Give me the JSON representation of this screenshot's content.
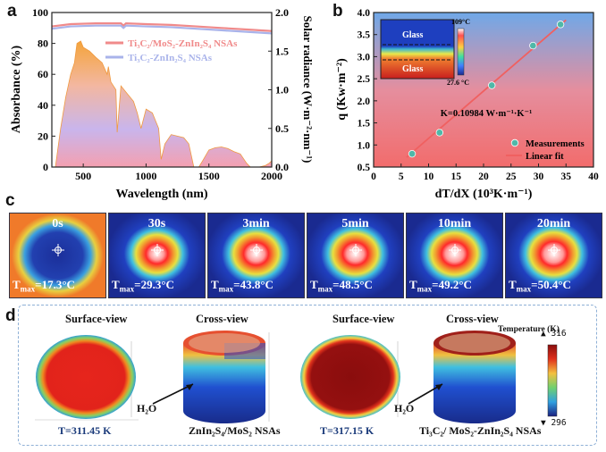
{
  "panels": {
    "a": {
      "letter": "a"
    },
    "b": {
      "letter": "b"
    },
    "c": {
      "letter": "c"
    },
    "d": {
      "letter": "d"
    }
  },
  "chart_data": [
    {
      "id": "a",
      "type": "area",
      "xlabel": "Wavelength (nm)",
      "ylabel": "Absorbance (%)",
      "y2label": "Solar radiance (W·m⁻²·nm⁻¹)",
      "xlim": [
        250,
        2000
      ],
      "ylim": [
        0,
        100
      ],
      "y2lim": [
        0,
        2.0
      ],
      "xticks": [
        500,
        1000,
        1500,
        2000
      ],
      "yticks": [
        0,
        20,
        40,
        60,
        80,
        100
      ],
      "y2ticks": [
        "0.0",
        "0.5",
        "1.0",
        "1.5",
        "2.0"
      ],
      "legend": [
        "Ti₃C₂/MoS₂-ZnIn₂S₄ NSAs",
        "Ti₃C₂-ZnIn₂S₄ NSAs"
      ],
      "series": [
        {
          "name": "Ti₃C₂/MoS₂-ZnIn₂S₄ NSAs",
          "color": "#f08a8a",
          "x": [
            250,
            400,
            600,
            800,
            820,
            840,
            1000,
            1200,
            1400,
            1600,
            1800,
            2000
          ],
          "y": [
            91,
            92.5,
            93,
            93,
            91.5,
            93,
            92.5,
            92,
            91,
            90,
            89,
            88
          ]
        },
        {
          "name": "Ti₃C₂-ZnIn₂S₄ NSAs",
          "color": "#a9b3ea",
          "x": [
            250,
            400,
            600,
            800,
            820,
            840,
            1000,
            1200,
            1400,
            1600,
            1800,
            2000
          ],
          "y": [
            89.5,
            91,
            91.5,
            91.5,
            90,
            91.5,
            91,
            90.5,
            89.5,
            88.5,
            87.5,
            86.5
          ]
        },
        {
          "name": "Solar radiance",
          "axis": "right",
          "x": [
            280,
            320,
            360,
            400,
            430,
            450,
            480,
            500,
            550,
            600,
            650,
            690,
            700,
            720,
            760,
            770,
            800,
            850,
            900,
            930,
            960,
            1000,
            1050,
            1100,
            1120,
            1150,
            1200,
            1250,
            1300,
            1340,
            1380,
            1420,
            1450,
            1500,
            1550,
            1600,
            1650,
            1700,
            1750,
            1800,
            1830,
            1900,
            1950,
            1980,
            2000
          ],
          "y": [
            0.02,
            0.5,
            0.9,
            1.2,
            1.35,
            1.6,
            1.63,
            1.55,
            1.5,
            1.42,
            1.35,
            1.2,
            1.3,
            1.1,
            1.0,
            0.45,
            1.05,
            0.95,
            0.85,
            0.7,
            0.5,
            0.75,
            0.7,
            0.5,
            0.1,
            0.3,
            0.42,
            0.4,
            0.38,
            0.3,
            0.0,
            0.0,
            0.08,
            0.22,
            0.25,
            0.26,
            0.24,
            0.2,
            0.17,
            0.05,
            0.0,
            0.0,
            0.02,
            0.05,
            0.08
          ]
        }
      ]
    },
    {
      "id": "b",
      "type": "scatter",
      "xlabel": "dT/dX (10³K·m⁻¹)",
      "ylabel": "q (Kw·m⁻²)",
      "xlim": [
        0,
        40
      ],
      "ylim": [
        0.5,
        4.0
      ],
      "xticks": [
        0,
        5,
        10,
        15,
        20,
        25,
        30,
        35,
        40
      ],
      "yticks": [
        "0.5",
        "1.0",
        "1.5",
        "2.0",
        "2.5",
        "3.0",
        "3.5",
        "4.0"
      ],
      "annotation": "K=0.10984 W·m⁻¹·K⁻¹",
      "legend": [
        "Measurements",
        "Linear fit"
      ],
      "inset": {
        "top_label": "Glass",
        "bottom_label": "Glass",
        "max_temp": "109°C",
        "min_temp": "27.6 °C"
      },
      "series": [
        {
          "name": "Measurements",
          "color": "#4fb8a8",
          "x": [
            7,
            12,
            21.5,
            29,
            34
          ],
          "y": [
            0.8,
            1.28,
            2.35,
            3.25,
            3.73
          ]
        },
        {
          "name": "Linear fit",
          "color": "#f06060",
          "x": [
            6,
            35
          ],
          "y": [
            0.72,
            3.83
          ]
        }
      ]
    }
  ],
  "thermal": [
    {
      "time": "0s",
      "tmax": "=17.3°C",
      "intensity": 0.0
    },
    {
      "time": "30s",
      "tmax": "=29.3°C",
      "intensity": 0.55
    },
    {
      "time": "3min",
      "tmax": "=43.8°C",
      "intensity": 0.75
    },
    {
      "time": "5min",
      "tmax": "=48.5°C",
      "intensity": 0.82
    },
    {
      "time": "10min",
      "tmax": "=49.2°C",
      "intensity": 0.85
    },
    {
      "time": "20min",
      "tmax": "=50.4°C",
      "intensity": 0.95
    }
  ],
  "tmax_prefix": "T",
  "tmax_sub": "max",
  "simulation": {
    "surface_view": "Surface-view",
    "cross_view": "Cross-view",
    "h2o": "H₂O",
    "left": {
      "temp": "T=311.45 K",
      "material": "ZnIn₂S₄/MoS₂ NSAs"
    },
    "right": {
      "temp": "T=317.15 K",
      "material": "Ti₃C₂/ MoS₂-ZnIn₂S₄ NSAs"
    },
    "colorbar": {
      "title": "Temperature (K)",
      "max": "▲ 316",
      "min": "▼ 296"
    }
  }
}
